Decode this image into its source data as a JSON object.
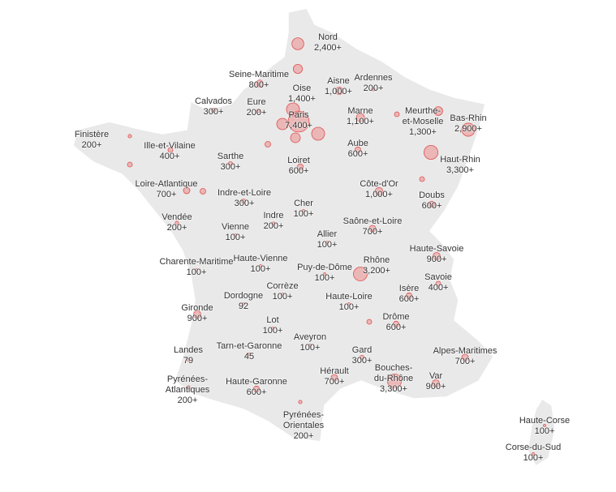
{
  "departments": [
    {
      "name": "Nord",
      "value": 2400,
      "label": "2,400+"
    },
    {
      "name": "Seine-Maritime",
      "value": 800,
      "label": "800+"
    },
    {
      "name": "Oise",
      "value": 1400,
      "label": "1,400+"
    },
    {
      "name": "Aisne",
      "value": 1000,
      "label": "1,000+"
    },
    {
      "name": "Ardennes",
      "value": 200,
      "label": "200+"
    },
    {
      "name": "Calvados",
      "value": 300,
      "label": "300+"
    },
    {
      "name": "Eure",
      "value": 200,
      "label": "200+"
    },
    {
      "name": "Paris",
      "value": 7400,
      "label": "7,400+"
    },
    {
      "name": "Marne",
      "value": 1100,
      "label": "1,100+"
    },
    {
      "name": "Meurthe-\net-Moselle",
      "value": 1300,
      "label": "1,300+"
    },
    {
      "name": "Bas-Rhin",
      "value": 2900,
      "label": "2,900+"
    },
    {
      "name": "Finistère",
      "value": 200,
      "label": "200+"
    },
    {
      "name": "Ille-et-Vilaine",
      "value": 400,
      "label": "400+"
    },
    {
      "name": "Sarthe",
      "value": 300,
      "label": "300+"
    },
    {
      "name": "Aube",
      "value": 600,
      "label": "600+"
    },
    {
      "name": "Loiret",
      "value": 600,
      "label": "600+"
    },
    {
      "name": "Haut-Rhin",
      "value": 3300,
      "label": "3,300+"
    },
    {
      "name": "Loire-Atlantique",
      "value": 700,
      "label": "700+"
    },
    {
      "name": "Indre-et-Loire",
      "value": 300,
      "label": "300+"
    },
    {
      "name": "Côte-d'Or",
      "value": 1000,
      "label": "1,000+"
    },
    {
      "name": "Doubs",
      "value": 600,
      "label": "600+"
    },
    {
      "name": "Cher",
      "value": 100,
      "label": "100+"
    },
    {
      "name": "Indre",
      "value": 200,
      "label": "200+"
    },
    {
      "name": "Vendée",
      "value": 200,
      "label": "200+"
    },
    {
      "name": "Vienne",
      "value": 100,
      "label": "100+"
    },
    {
      "name": "Saône-et-Loire",
      "value": 700,
      "label": "700+"
    },
    {
      "name": "Allier",
      "value": 100,
      "label": "100+"
    },
    {
      "name": "Haute-Savoie",
      "value": 900,
      "label": "900+"
    },
    {
      "name": "Charente-Maritime",
      "value": 100,
      "label": "100+"
    },
    {
      "name": "Haute-Vienne",
      "value": 100,
      "label": "100+"
    },
    {
      "name": "Puy-de-Dôme",
      "value": 100,
      "label": "100+"
    },
    {
      "name": "Rhône",
      "value": 3200,
      "label": "3,200+"
    },
    {
      "name": "Savoie",
      "value": 400,
      "label": "400+"
    },
    {
      "name": "Corrèze",
      "value": 100,
      "label": "100+"
    },
    {
      "name": "Dordogne",
      "value": 92
    },
    {
      "name": "Isère",
      "value": 600,
      "label": "600+"
    },
    {
      "name": "Haute-Loire",
      "value": 100,
      "label": "100+"
    },
    {
      "name": "Gironde",
      "value": 900,
      "label": "900+"
    },
    {
      "name": "Drôme",
      "value": 600,
      "label": "600+"
    },
    {
      "name": "Lot",
      "value": 100,
      "label": "100+"
    },
    {
      "name": "Aveyron",
      "value": 100,
      "label": "100+"
    },
    {
      "name": "Landes",
      "value": 79
    },
    {
      "name": "Tarn-et-Garonne",
      "value": 45
    },
    {
      "name": "Gard",
      "value": 300,
      "label": "300+"
    },
    {
      "name": "Alpes-Maritimes",
      "value": 700,
      "label": "700+"
    },
    {
      "name": "Hérault",
      "value": 700,
      "label": "700+"
    },
    {
      "name": "Bouches-\ndu-Rhône",
      "value": 3300,
      "label": "3,300+"
    },
    {
      "name": "Var",
      "value": 900,
      "label": "900+"
    },
    {
      "name": "Pyrénées-\nAtlantiques",
      "value": 200,
      "label": "200+"
    },
    {
      "name": "Haute-Garonne",
      "value": 600,
      "label": "600+"
    },
    {
      "name": "Pyrénées-\nOrientales",
      "value": 200,
      "label": "200+"
    },
    {
      "name": "Haute-Corse",
      "value": 100,
      "label": "100+"
    },
    {
      "name": "Corse-du-Sud",
      "value": 100,
      "label": "100+"
    }
  ]
}
